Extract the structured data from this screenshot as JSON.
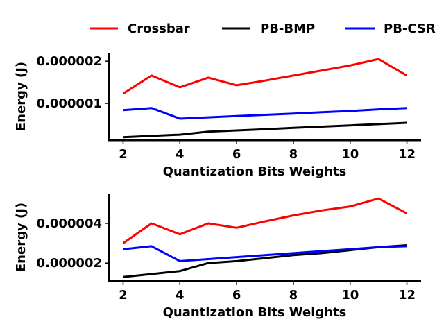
{
  "legend": {
    "placement": "top-center",
    "entries": [
      {
        "name": "Crossbar",
        "color": "#ff0000"
      },
      {
        "name": "PB-BMP",
        "color": "#000000"
      },
      {
        "name": "PB-CSR",
        "color": "#0000ff"
      }
    ]
  },
  "chart_data": [
    {
      "type": "line",
      "xlabel": "Quantization Bits Weights",
      "ylabel": "Energy (J)",
      "xlim": [
        1.5,
        12.5
      ],
      "ylim": [
        1.3e-07,
        2.2e-06
      ],
      "xticks": [
        2,
        4,
        6,
        8,
        10,
        12
      ],
      "xtick_labels": [
        "2",
        "4",
        "6",
        "8",
        "10",
        "12"
      ],
      "yticks": [
        1e-06,
        2e-06
      ],
      "ytick_labels": [
        "0.000001",
        "0.000002"
      ],
      "grid": false,
      "x": [
        2,
        3,
        4,
        5,
        6,
        7,
        8,
        9,
        10,
        11,
        12
      ],
      "series": [
        {
          "name": "Crossbar",
          "color": "#ff0000",
          "values": [
            1.23e-06,
            1.66e-06,
            1.38e-06,
            1.61e-06,
            1.43e-06,
            1.54e-06,
            1.66e-06,
            1.78e-06,
            1.9e-06,
            2.05e-06,
            1.66e-06
          ]
        },
        {
          "name": "PB-BMP",
          "color": "#000000",
          "values": [
            2e-07,
            2.3e-07,
            2.6e-07,
            3.3e-07,
            3.6e-07,
            3.9e-07,
            4.2e-07,
            4.5e-07,
            4.8e-07,
            5.1e-07,
            5.4e-07
          ]
        },
        {
          "name": "PB-CSR",
          "color": "#0000ff",
          "values": [
            8.4e-07,
            8.9e-07,
            6.4e-07,
            6.7e-07,
            7e-07,
            7.3e-07,
            7.6e-07,
            7.9e-07,
            8.2e-07,
            8.6e-07,
            8.9e-07
          ]
        }
      ]
    },
    {
      "type": "line",
      "xlabel": "Quantization Bits Weights",
      "ylabel": "Energy (J)",
      "xlim": [
        1.5,
        12.5
      ],
      "ylim": [
        1.1e-06,
        5.5e-06
      ],
      "xticks": [
        2,
        4,
        6,
        8,
        10,
        12
      ],
      "xtick_labels": [
        "2",
        "4",
        "6",
        "8",
        "10",
        "12"
      ],
      "yticks": [
        2e-06,
        4e-06
      ],
      "ytick_labels": [
        "0.000002",
        "0.000004"
      ],
      "grid": false,
      "x": [
        2,
        3,
        4,
        5,
        6,
        7,
        8,
        9,
        10,
        11,
        12
      ],
      "series": [
        {
          "name": "Crossbar",
          "color": "#ff0000",
          "values": [
            3e-06,
            4e-06,
            3.45e-06,
            4e-06,
            3.78e-06,
            4.1e-06,
            4.4e-06,
            4.65e-06,
            4.85e-06,
            5.25e-06,
            4.5e-06
          ]
        },
        {
          "name": "PB-BMP",
          "color": "#000000",
          "values": [
            1.3e-06,
            1.45e-06,
            1.6e-06,
            2e-06,
            2.1e-06,
            2.25e-06,
            2.4e-06,
            2.5e-06,
            2.65e-06,
            2.8e-06,
            2.9e-06
          ]
        },
        {
          "name": "PB-CSR",
          "color": "#0000ff",
          "values": [
            2.7e-06,
            2.85e-06,
            2.1e-06,
            2.2e-06,
            2.3e-06,
            2.4e-06,
            2.5e-06,
            2.6e-06,
            2.7e-06,
            2.8e-06,
            2.85e-06
          ]
        }
      ]
    }
  ]
}
